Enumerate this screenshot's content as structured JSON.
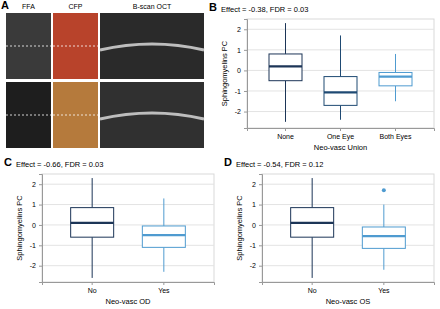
{
  "panel_a": {
    "label": "A",
    "columns": [
      "FFA",
      "CFP",
      "B-scan OCT"
    ]
  },
  "chart_data": [
    {
      "type": "box",
      "panel": "B",
      "title": "Effect = -0.38, FDR = 0.03",
      "x_label": "Neo-vasc Union",
      "y_label": "Sphingomyelins PC",
      "categories": [
        "None",
        "One Eye",
        "Both Eyes"
      ],
      "boxes": [
        {
          "min": -2.5,
          "q1": -0.5,
          "median": 0.2,
          "q3": 0.8,
          "max": 2.3,
          "outliers": []
        },
        {
          "min": -2.4,
          "q1": -1.7,
          "median": -1.07,
          "q3": -0.3,
          "max": 1.7,
          "outliers": []
        },
        {
          "min": -1.5,
          "q1": -0.75,
          "median": -0.3,
          "q3": -0.1,
          "max": 0.8,
          "outliers": []
        }
      ],
      "colors": [
        "#1c3557",
        "#1f4a73",
        "#4f9bd0"
      ],
      "ylim": [
        -2.8,
        2.5
      ],
      "yticks": [
        -2,
        -1,
        0,
        1,
        2
      ],
      "grid": true
    },
    {
      "type": "box",
      "panel": "C",
      "title": "Effect = -0.66, FDR = 0.03",
      "x_label": "Neo-vasc OD",
      "y_label": "Sphingomyelins PC",
      "categories": [
        "No",
        "Yes"
      ],
      "boxes": [
        {
          "min": -2.6,
          "q1": -0.6,
          "median": 0.1,
          "q3": 0.85,
          "max": 2.3,
          "outliers": []
        },
        {
          "min": -2.3,
          "q1": -1.1,
          "median": -0.5,
          "q3": -0.05,
          "max": 1.3,
          "outliers": []
        }
      ],
      "colors": [
        "#1c3557",
        "#4f9bd0"
      ],
      "ylim": [
        -2.8,
        2.5
      ],
      "yticks": [
        -2,
        -1,
        0,
        1,
        2
      ],
      "grid": true
    },
    {
      "type": "box",
      "panel": "D",
      "title": "Effect = -0.54, FDR = 0.12",
      "x_label": "Neo-vasc OS",
      "y_label": "Sphingomyelins PC",
      "categories": [
        "No",
        "Yes"
      ],
      "boxes": [
        {
          "min": -2.6,
          "q1": -0.6,
          "median": 0.1,
          "q3": 0.85,
          "max": 2.3,
          "outliers": []
        },
        {
          "min": -2.2,
          "q1": -1.15,
          "median": -0.55,
          "q3": -0.1,
          "max": 1.0,
          "outliers": [
            1.7
          ]
        }
      ],
      "colors": [
        "#1c3557",
        "#4f9bd0"
      ],
      "ylim": [
        -2.8,
        2.5
      ],
      "yticks": [
        -2,
        -1,
        0,
        1,
        2
      ],
      "grid": true
    }
  ]
}
